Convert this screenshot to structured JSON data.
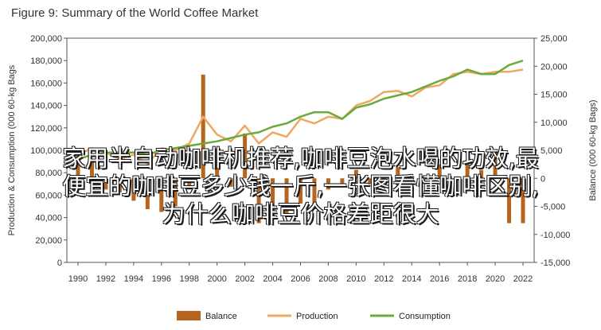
{
  "chart_data": {
    "type": "bar",
    "title": "Figure 9: Summary of the World Coffee Market",
    "xlabel": "",
    "ylabel_left": "Production & Consumption (000 60-kg Bags",
    "ylabel_right": "Balance (000 60-kg Bags)",
    "x": [
      1990,
      1991,
      1992,
      1993,
      1994,
      1995,
      1996,
      1997,
      1998,
      1999,
      2000,
      2001,
      2002,
      2003,
      2004,
      2005,
      2006,
      2007,
      2008,
      2009,
      2010,
      2011,
      2012,
      2013,
      2014,
      2015,
      2016,
      2017,
      2018,
      2019,
      2020,
      2021,
      2022
    ],
    "x_tick_labels": [
      "1990",
      "1992",
      "1994",
      "1996",
      "1998",
      "2000",
      "2002",
      "2004",
      "2006",
      "2008",
      "2010",
      "2012",
      "2014",
      "2016",
      "2018",
      "2020",
      "2022"
    ],
    "y_left_ticks": [
      "0",
      "20,000",
      "40,000",
      "60,000",
      "80,000",
      "100,000",
      "120,000",
      "140,000",
      "160,000",
      "180,000",
      "200,000"
    ],
    "y_right_ticks": [
      "-15,000",
      "-10,000",
      "-5,000",
      "0",
      "5,000",
      "10,000",
      "15,000",
      "20,000",
      "25,000"
    ],
    "ylim_left": [
      0,
      200000
    ],
    "ylim_right": [
      -15000,
      25000
    ],
    "series": [
      {
        "name": "Balance",
        "type": "bar",
        "axis": "right",
        "color": "#b5651d",
        "values": [
          4000,
          3500,
          -2000,
          -2500,
          -4000,
          -5500,
          -6000,
          -5000,
          -2000,
          18500,
          4000,
          -1500,
          8000,
          -8000,
          -7000,
          -6500,
          -4500,
          -5500,
          -2000,
          -1500,
          1500,
          -1000,
          -1000,
          2000,
          -1500,
          -1000,
          2500,
          -500,
          3000,
          1500,
          4500,
          -8000,
          -8000
        ]
      },
      {
        "name": "Production",
        "type": "line",
        "axis": "left",
        "color": "#f0a860",
        "values": [
          96000,
          102000,
          98000,
          92000,
          96000,
          88000,
          102000,
          100000,
          106000,
          130000,
          114000,
          108000,
          122000,
          106000,
          116000,
          112000,
          128000,
          124000,
          130000,
          128000,
          140000,
          144000,
          152000,
          153000,
          148000,
          156000,
          158000,
          168000,
          170000,
          168000,
          170000,
          170000,
          172000
        ]
      },
      {
        "name": "Consumption",
        "type": "line",
        "axis": "left",
        "color": "#6aaa3a",
        "values": [
          92000,
          96000,
          98000,
          98000,
          98000,
          96000,
          100000,
          102000,
          104000,
          106000,
          108000,
          111000,
          114000,
          116000,
          121000,
          124000,
          130000,
          134000,
          134000,
          128000,
          138000,
          141000,
          146000,
          149000,
          152000,
          157000,
          162000,
          166000,
          172000,
          168000,
          168000,
          176000,
          180000
        ]
      }
    ],
    "legend": {
      "position": "bottom",
      "entries": [
        "Balance",
        "Production",
        "Consumption"
      ]
    },
    "grid": false
  },
  "overlay_text": {
    "line1": "家用半自动咖啡机推荐,咖啡豆泡水喝的功效,最",
    "line2": "便宜的咖啡豆多少钱一斤,一张图看懂咖啡区别,",
    "line3": "为什么咖啡豆价格差距很大"
  }
}
